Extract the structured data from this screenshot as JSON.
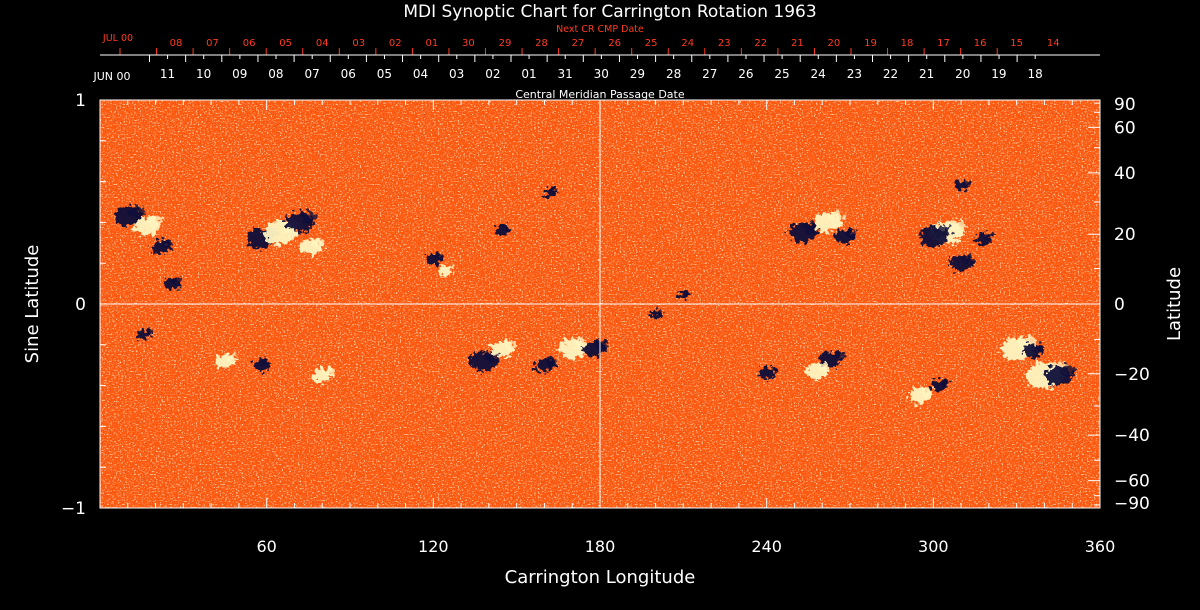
{
  "chart_data": {
    "type": "heatmap",
    "title": "MDI Synoptic Chart for Carrington Rotation 1963",
    "xlabel": "Carrington Longitude",
    "ylabel_left": "Sine Latitude",
    "ylabel_right": "Latitude",
    "xlim": [
      0,
      360
    ],
    "ylim": [
      -1,
      1
    ],
    "x_ticks": [
      60,
      120,
      180,
      240,
      300,
      360
    ],
    "y_ticks_left": [
      {
        "value": 1,
        "label": "1"
      },
      {
        "value": 0,
        "label": "0"
      },
      {
        "value": -1,
        "label": "−1"
      }
    ],
    "y_ticks_right": [
      {
        "value": 90,
        "label": "90"
      },
      {
        "value": 60,
        "label": "60"
      },
      {
        "value": 40,
        "label": "40"
      },
      {
        "value": 20,
        "label": "20"
      },
      {
        "value": 0,
        "label": "0"
      },
      {
        "value": -20,
        "label": "−20"
      },
      {
        "value": -40,
        "label": "−40"
      },
      {
        "value": -60,
        "label": "−60"
      },
      {
        "value": -90,
        "label": "−90"
      }
    ],
    "cmp_axis": {
      "label": "Central Meridian Passage Date",
      "month_label": "JUN 00",
      "days": [
        "11",
        "10",
        "09",
        "08",
        "07",
        "06",
        "05",
        "04",
        "03",
        "02",
        "01",
        "31",
        "30",
        "29",
        "28",
        "27",
        "26",
        "25",
        "24",
        "23",
        "22",
        "21",
        "20",
        "19",
        "18"
      ]
    },
    "next_cmp_axis": {
      "label": "Next CR CMP Date",
      "month_label": "JUL 00",
      "days": [
        "08",
        "07",
        "06",
        "05",
        "04",
        "03",
        "02",
        "01",
        "30",
        "29",
        "28",
        "27",
        "26",
        "25",
        "24",
        "23",
        "22",
        "21",
        "20",
        "19",
        "18",
        "17",
        "16",
        "15",
        "14"
      ]
    },
    "colors": {
      "background_field": "#ff5a10",
      "positive_polarity": "#fff4c0",
      "negative_polarity": "#10103a",
      "axis_text": "#ffffff",
      "next_cr_text": "#ff3b1f"
    },
    "active_regions": [
      {
        "lon": 10,
        "sinlat": 0.43,
        "polarity": "negative",
        "size": 1.0
      },
      {
        "lon": 17,
        "sinlat": 0.38,
        "polarity": "positive",
        "size": 0.9
      },
      {
        "lon": 22,
        "sinlat": 0.28,
        "polarity": "negative",
        "size": 0.7
      },
      {
        "lon": 26,
        "sinlat": 0.1,
        "polarity": "negative",
        "size": 0.6
      },
      {
        "lon": 58,
        "sinlat": 0.32,
        "polarity": "negative",
        "size": 1.0
      },
      {
        "lon": 65,
        "sinlat": 0.35,
        "polarity": "positive",
        "size": 1.2
      },
      {
        "lon": 72,
        "sinlat": 0.4,
        "polarity": "negative",
        "size": 1.0
      },
      {
        "lon": 76,
        "sinlat": 0.28,
        "polarity": "positive",
        "size": 0.8
      },
      {
        "lon": 120,
        "sinlat": 0.22,
        "polarity": "negative",
        "size": 0.6
      },
      {
        "lon": 124,
        "sinlat": 0.16,
        "polarity": "positive",
        "size": 0.5
      },
      {
        "lon": 145,
        "sinlat": 0.36,
        "polarity": "negative",
        "size": 0.5
      },
      {
        "lon": 162,
        "sinlat": 0.55,
        "polarity": "negative",
        "size": 0.5
      },
      {
        "lon": 16,
        "sinlat": -0.15,
        "polarity": "negative",
        "size": 0.5
      },
      {
        "lon": 45,
        "sinlat": -0.28,
        "polarity": "positive",
        "size": 0.7
      },
      {
        "lon": 58,
        "sinlat": -0.3,
        "polarity": "negative",
        "size": 0.6
      },
      {
        "lon": 80,
        "sinlat": -0.35,
        "polarity": "positive",
        "size": 0.7
      },
      {
        "lon": 138,
        "sinlat": -0.28,
        "polarity": "negative",
        "size": 1.0
      },
      {
        "lon": 145,
        "sinlat": -0.22,
        "polarity": "positive",
        "size": 0.8
      },
      {
        "lon": 160,
        "sinlat": -0.3,
        "polarity": "negative",
        "size": 0.7
      },
      {
        "lon": 170,
        "sinlat": -0.22,
        "polarity": "positive",
        "size": 1.0
      },
      {
        "lon": 178,
        "sinlat": -0.22,
        "polarity": "negative",
        "size": 0.8
      },
      {
        "lon": 200,
        "sinlat": -0.05,
        "polarity": "negative",
        "size": 0.4
      },
      {
        "lon": 210,
        "sinlat": 0.05,
        "polarity": "negative",
        "size": 0.4
      },
      {
        "lon": 253,
        "sinlat": 0.35,
        "polarity": "negative",
        "size": 1.0
      },
      {
        "lon": 262,
        "sinlat": 0.4,
        "polarity": "positive",
        "size": 1.0
      },
      {
        "lon": 268,
        "sinlat": 0.33,
        "polarity": "negative",
        "size": 0.7
      },
      {
        "lon": 305,
        "sinlat": 0.35,
        "polarity": "positive",
        "size": 1.1
      },
      {
        "lon": 300,
        "sinlat": 0.33,
        "polarity": "negative",
        "size": 1.0
      },
      {
        "lon": 310,
        "sinlat": 0.2,
        "polarity": "negative",
        "size": 0.8
      },
      {
        "lon": 318,
        "sinlat": 0.32,
        "polarity": "negative",
        "size": 0.6
      },
      {
        "lon": 310,
        "sinlat": 0.58,
        "polarity": "negative",
        "size": 0.5
      },
      {
        "lon": 240,
        "sinlat": -0.34,
        "polarity": "negative",
        "size": 0.6
      },
      {
        "lon": 263,
        "sinlat": -0.27,
        "polarity": "negative",
        "size": 0.8
      },
      {
        "lon": 258,
        "sinlat": -0.33,
        "polarity": "positive",
        "size": 0.8
      },
      {
        "lon": 295,
        "sinlat": -0.45,
        "polarity": "positive",
        "size": 0.8
      },
      {
        "lon": 302,
        "sinlat": -0.4,
        "polarity": "negative",
        "size": 0.6
      },
      {
        "lon": 330,
        "sinlat": -0.22,
        "polarity": "positive",
        "size": 1.2
      },
      {
        "lon": 340,
        "sinlat": -0.35,
        "polarity": "positive",
        "size": 1.3
      },
      {
        "lon": 345,
        "sinlat": -0.35,
        "polarity": "negative",
        "size": 1.0
      },
      {
        "lon": 336,
        "sinlat": -0.23,
        "polarity": "negative",
        "size": 0.7
      }
    ]
  }
}
